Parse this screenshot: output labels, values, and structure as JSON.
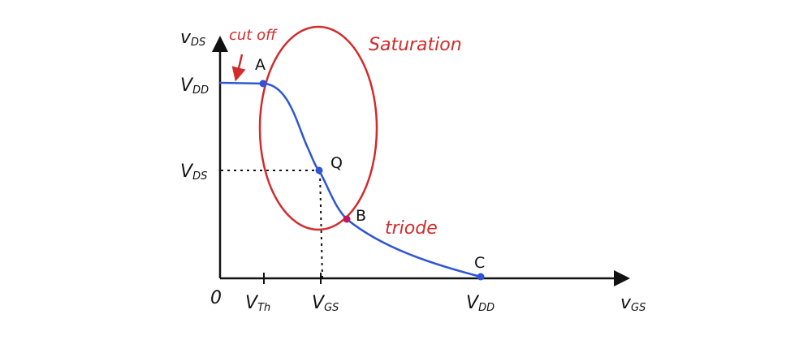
{
  "axes": {
    "y_label_main": "v",
    "y_label_sub": "DS",
    "x_label_main": "v",
    "x_label_sub": "GS",
    "origin": "0"
  },
  "x_ticks": [
    {
      "main": "V",
      "sub": "Th"
    },
    {
      "main": "V",
      "sub": "GS"
    },
    {
      "main": "V",
      "sub": "DD"
    }
  ],
  "y_ticks": [
    {
      "main": "V",
      "sub": "DD"
    },
    {
      "main": "V",
      "sub": "DS"
    }
  ],
  "points": {
    "a": "A",
    "q": "Q",
    "b": "B",
    "c": "C"
  },
  "regions": {
    "cutoff": "cut off",
    "saturation": "Saturation",
    "triode": "triode"
  },
  "colors": {
    "curve": "#2f55d4",
    "region": "#d22b2b",
    "axis": "#111111"
  }
}
